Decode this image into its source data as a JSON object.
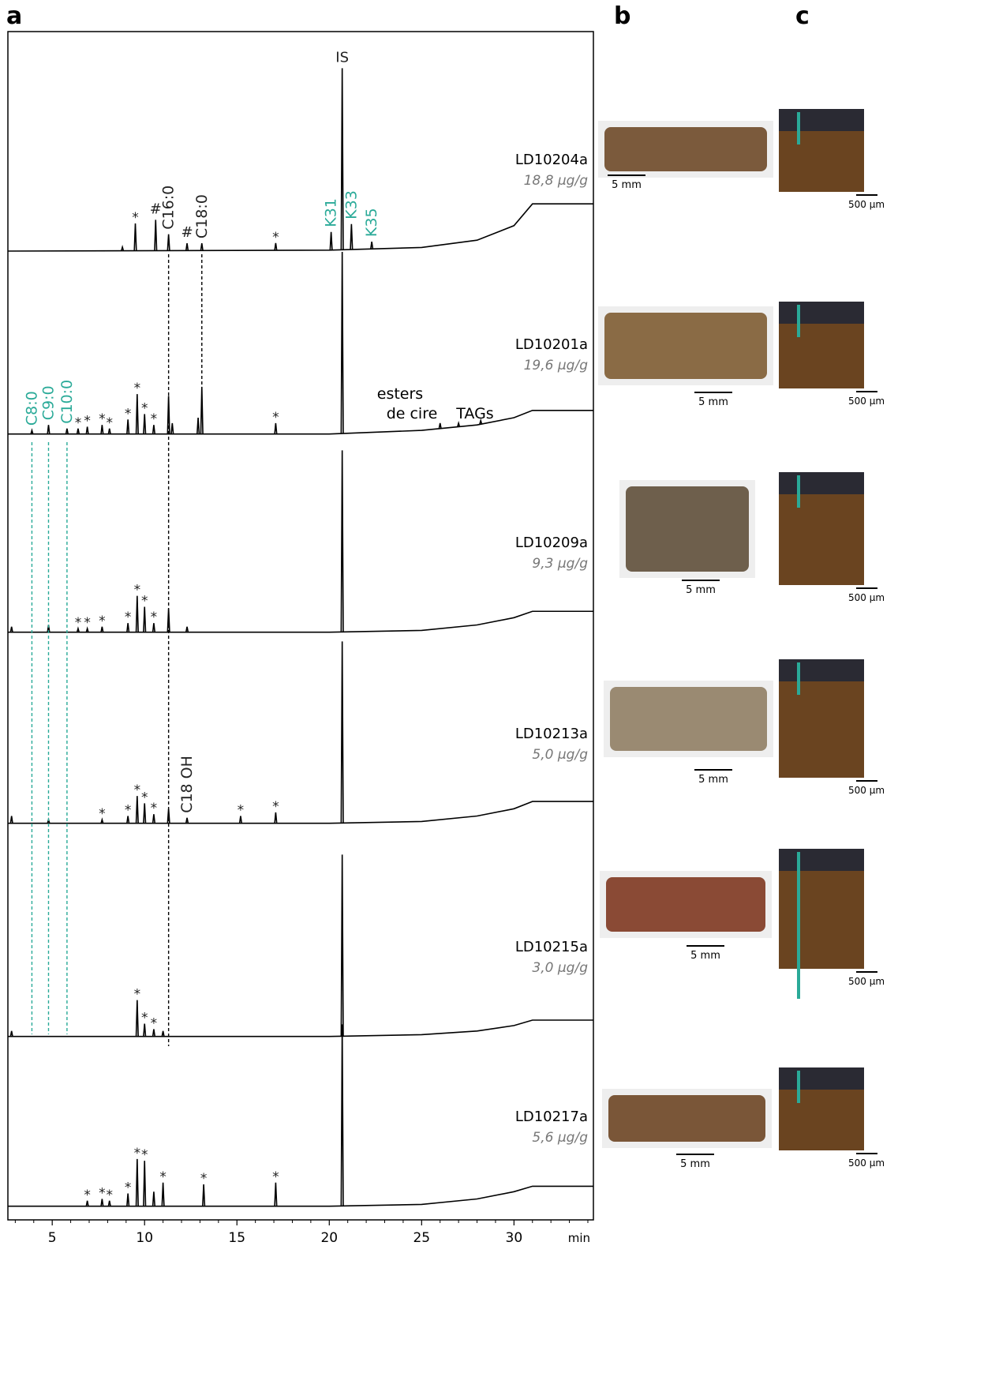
{
  "chart_data": {
    "type": "line",
    "panel_label": "a",
    "xlim": [
      2.6,
      34.3
    ],
    "xticks": [
      5,
      10,
      15,
      20,
      25,
      30
    ],
    "xlabel": "min",
    "ylim": [
      0,
      100
    ],
    "color": "#000000",
    "highlight_color": "#2aaa98",
    "baseline_x": [
      2.6,
      20,
      25,
      28,
      30,
      31,
      34.3
    ],
    "series": [
      {
        "name": "LD10204a",
        "concentration": "18,8 µg/g",
        "x": [
          8.8,
          9.5,
          10.6,
          11.3,
          12.3,
          13.1,
          17.1,
          20.1,
          20.7,
          21.2,
          22.3
        ],
        "values": [
          2,
          15,
          17,
          9,
          4,
          4,
          4,
          10,
          100,
          14,
          4
        ],
        "labels": [
          null,
          "*",
          "#",
          "C16:0",
          "#",
          "C18:0",
          "*",
          {
            "text": "K31",
            "color": "#2aaa98"
          },
          "IS",
          {
            "text": "K33",
            "color": "#2aaa98"
          },
          {
            "text": "K35",
            "color": "#2aaa98"
          }
        ],
        "baseline": [
          0,
          0.5,
          2,
          6,
          14,
          26,
          26
        ]
      },
      {
        "name": "LD10201a",
        "concentration": "19,6 µg/g",
        "x": [
          3.9,
          4.8,
          5.8,
          6.4,
          6.9,
          7.7,
          8.1,
          9.1,
          9.6,
          10.0,
          10.5,
          11.3,
          11.5,
          12.9,
          13.1,
          17.1,
          20.7,
          26.0,
          27.0,
          28.2
        ],
        "values": [
          2,
          5,
          3,
          3,
          4,
          5,
          3,
          8,
          22,
          11,
          5,
          21,
          6,
          9,
          26,
          6,
          100,
          3,
          2,
          2
        ],
        "labels": [
          {
            "text": "C8:0",
            "color": "#2aaa98"
          },
          {
            "text": "C9:0",
            "color": "#2aaa98"
          },
          {
            "text": "C10:0",
            "color": "#2aaa98"
          },
          "*",
          "*",
          "*",
          "*",
          "*",
          "*",
          "*",
          "*",
          null,
          null,
          null,
          null,
          "*",
          null,
          null,
          null,
          null
        ],
        "annotations": [
          "esters",
          "de cire",
          "TAGs"
        ],
        "baseline": [
          1,
          1,
          3,
          6,
          10,
          14,
          14
        ]
      },
      {
        "name": "LD10209a",
        "concentration": "9,3 µg/g",
        "x": [
          2.8,
          4.8,
          6.4,
          6.9,
          7.7,
          9.1,
          9.6,
          10.0,
          10.5,
          11.3,
          12.3,
          20.7
        ],
        "values": [
          3,
          4,
          2,
          2,
          3,
          5,
          20,
          14,
          5,
          13,
          3,
          100
        ],
        "labels": [
          null,
          null,
          "*",
          "*",
          "*",
          "*",
          "*",
          "*",
          "*",
          null,
          null,
          null
        ],
        "baseline": [
          1,
          1,
          2,
          5,
          9,
          12.5,
          12.5
        ]
      },
      {
        "name": "LD10213a",
        "concentration": "5,0 µg/g",
        "x": [
          2.8,
          4.8,
          7.7,
          9.1,
          9.6,
          10.0,
          10.5,
          11.3,
          12.3,
          15.2,
          17.1,
          20.7
        ],
        "values": [
          4,
          2,
          2,
          4,
          15,
          11,
          5,
          8,
          3,
          4,
          6,
          100
        ],
        "labels": [
          null,
          null,
          "*",
          "*",
          "*",
          "*",
          "*",
          null,
          "C18 OH",
          "*",
          "*",
          null
        ],
        "baseline": [
          1,
          1,
          2,
          5,
          9,
          13,
          13
        ]
      },
      {
        "name": "LD10215a",
        "concentration": "3,0 µg/g",
        "x": [
          2.8,
          9.6,
          10.0,
          10.5,
          11.0,
          20.7
        ],
        "values": [
          3,
          20,
          7,
          4,
          3,
          100
        ],
        "labels": [
          null,
          "*",
          "*",
          "*",
          null,
          null
        ],
        "baseline": [
          1,
          1,
          2,
          4,
          7,
          10,
          10
        ]
      },
      {
        "name": "LD10217a",
        "concentration": "5,6 µg/g",
        "x": [
          6.9,
          7.7,
          8.1,
          9.1,
          9.6,
          10.0,
          10.5,
          11.0,
          13.2,
          17.1,
          20.7
        ],
        "values": [
          3,
          4,
          3,
          7,
          26,
          25,
          8,
          13,
          12,
          13,
          100
        ],
        "labels": [
          "*",
          "*",
          "*",
          "*",
          "*",
          "*",
          null,
          "*",
          "*",
          "*",
          null
        ],
        "baseline": [
          1,
          1,
          2,
          5,
          9,
          12,
          12
        ]
      }
    ]
  },
  "panel_b": {
    "label": "b",
    "scale_labels": [
      "5 mm",
      "5 mm",
      "5 mm",
      "5 mm",
      "5 mm",
      "5 mm"
    ]
  },
  "panel_c": {
    "label": "c",
    "scale_labels": [
      "500 µm",
      "500 µm",
      "500 µm",
      "500 µm",
      "500 µm",
      "500 µm"
    ]
  }
}
